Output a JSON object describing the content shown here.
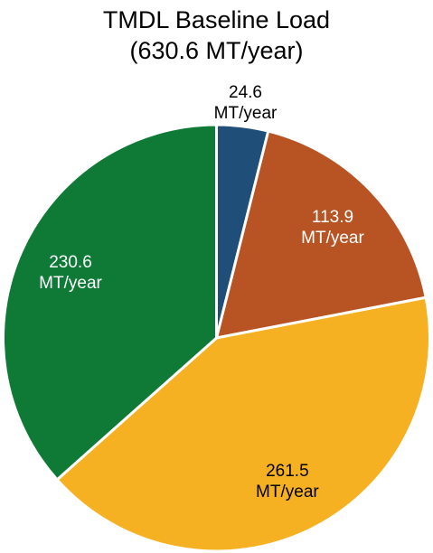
{
  "chart_data": {
    "type": "pie",
    "title": "TMDL Baseline Load",
    "subtitle": "(630.6 MT/year)",
    "categories": [
      null,
      null,
      null,
      null
    ],
    "values": [
      24.6,
      113.9,
      261.5,
      230.6
    ],
    "value_labels": [
      "24.6 MT/year",
      "113.9 MT/year",
      "261.5 MT/year",
      "230.6 MT/year"
    ],
    "colors": [
      "#1f4e79",
      "#b85423",
      "#f5b122",
      "#0e7a36"
    ],
    "label_colors": [
      "#000000",
      "#ffffff",
      "#000000",
      "#ffffff"
    ]
  }
}
